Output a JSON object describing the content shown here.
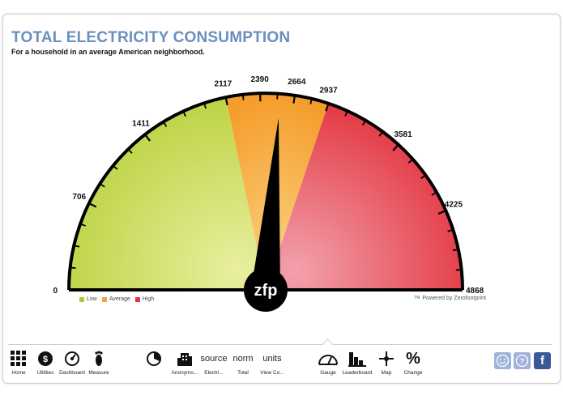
{
  "header": {
    "title": "TOTAL ELECTRICITY CONSUMPTION",
    "subtitle": "For a household in an average American neighborhood."
  },
  "gauge": {
    "min": 0,
    "max": 4868,
    "value": 2550,
    "tick_labels": [
      "0",
      "706",
      "1411",
      "2117",
      "2390",
      "2664",
      "2937",
      "3581",
      "4225",
      "4868"
    ],
    "tick_values": [
      0,
      706,
      1411,
      2117,
      2390,
      2664,
      2937,
      3581,
      4225,
      4868
    ],
    "zones": [
      {
        "name": "Low",
        "from": 0,
        "to": 2117,
        "color": "#c5d84a"
      },
      {
        "name": "Average",
        "from": 2117,
        "to": 2937,
        "color": "#f6a53a"
      },
      {
        "name": "High",
        "from": 2937,
        "to": 4868,
        "color": "#e3353e"
      }
    ],
    "center_logo": "zfp"
  },
  "legend": {
    "items": [
      {
        "label": "Low",
        "color": "#a8c93a"
      },
      {
        "label": "Average",
        "color": "#f6a53a"
      },
      {
        "label": "High",
        "color": "#e3353e"
      }
    ]
  },
  "powered_by": "Powered by Zerofootprint",
  "powered_tm": "TM",
  "toolbar": {
    "home": "Home",
    "utilities": "Utilities",
    "dashboard": "Dashboard",
    "measure": "Measure",
    "anonymous": "Anonymo...",
    "source_word": "source",
    "source_label": "Electri...",
    "norm_word": "norm",
    "norm_label": "Total",
    "units_word": "units",
    "units_label": "View Co...",
    "gauge": "Gauge",
    "leaderboard": "Leaderboard",
    "map": "Map",
    "change": "Change"
  },
  "social": {
    "facebook_glyph": "f"
  }
}
